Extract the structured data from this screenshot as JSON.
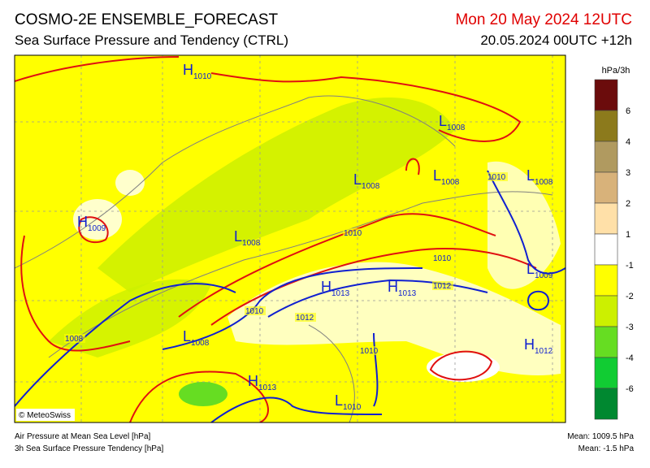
{
  "header": {
    "title": "COSMO-2E ENSEMBLE_FORECAST",
    "subtitle": "Sea Surface Pressure and Tendency (CTRL)",
    "valid_time": "Mon 20 May 2024 12UTC",
    "run_time": "20.05.2024 00UTC +12h"
  },
  "colorbar": {
    "unit": "hPa/3h",
    "colors": [
      "#6b0c0c",
      "#8c7a1c",
      "#b09a60",
      "#d8b27a",
      "#ffe0a8",
      "#ffffff",
      "#ffff00",
      "#ccf000",
      "#66dd22",
      "#11cc33",
      "#008830"
    ],
    "ticks": [
      6,
      4,
      3,
      2,
      1,
      -1,
      -2,
      -3,
      -4,
      -6
    ]
  },
  "map": {
    "centers": [
      {
        "letter": "H",
        "value": 1010
      },
      {
        "letter": "L",
        "value": 1008
      },
      {
        "letter": "L",
        "value": 1008
      },
      {
        "letter": "L",
        "value": 1008
      },
      {
        "letter": "L",
        "value": 1008
      },
      {
        "letter": "H",
        "value": 1009
      },
      {
        "letter": "L",
        "value": 1008
      },
      {
        "letter": "L",
        "value": 1009
      },
      {
        "letter": "H",
        "value": 1013
      },
      {
        "letter": "H",
        "value": 1013
      },
      {
        "letter": "L",
        "value": 1008
      },
      {
        "letter": "H",
        "value": 1012
      },
      {
        "letter": "H",
        "value": 1013
      },
      {
        "letter": "L",
        "value": 1010
      }
    ],
    "isobar_labels": [
      1010,
      1010,
      1010,
      1012,
      1010,
      1012,
      1008,
      1010
    ],
    "credit": "© MeteoSwiss"
  },
  "footer": {
    "left": [
      "Air Pressure at Mean Sea Level [hPa]",
      "3h Sea Surface Pressure Tendency [hPa]"
    ],
    "right": [
      "Mean: 1009.5 hPa",
      "Mean:  -1.5 hPa"
    ]
  }
}
